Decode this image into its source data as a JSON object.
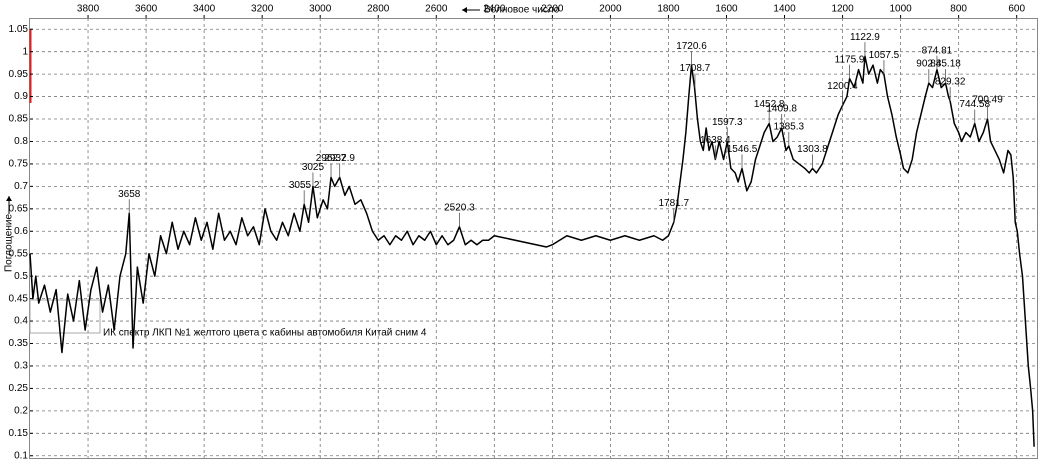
{
  "chart_data": {
    "type": "line",
    "x_label": "Волновое число",
    "y_label": "Поглощение",
    "annotation": "ИК спектр ЛКП №1 желтого цвета с кабины автомобиля Китай сним 4",
    "color": "#000000",
    "grid": true,
    "x_reversed": true,
    "xlim": [
      4000,
      530
    ],
    "ylim": [
      0.095,
      1.075
    ],
    "xticks": [
      3800,
      3600,
      3400,
      3200,
      3000,
      2800,
      2600,
      2400,
      2200,
      2000,
      1800,
      1600,
      1400,
      1200,
      1000,
      800,
      600
    ],
    "yticks": [
      1.05,
      1,
      0.95,
      0.9,
      0.85,
      0.8,
      0.75,
      0.7,
      0.65,
      0.6,
      0.55,
      0.5,
      0.45,
      0.4,
      0.35,
      0.3,
      0.25,
      0.2,
      0.15,
      0.1
    ],
    "x": [
      4000,
      3990,
      3980,
      3970,
      3950,
      3930,
      3910,
      3890,
      3870,
      3850,
      3830,
      3810,
      3790,
      3770,
      3750,
      3730,
      3710,
      3690,
      3670,
      3658,
      3645,
      3630,
      3610,
      3590,
      3570,
      3550,
      3530,
      3510,
      3490,
      3470,
      3450,
      3430,
      3410,
      3390,
      3370,
      3350,
      3330,
      3310,
      3290,
      3270,
      3250,
      3230,
      3210,
      3190,
      3170,
      3150,
      3130,
      3110,
      3090,
      3070,
      3055.2,
      3040,
      3025,
      3010,
      2990,
      2975,
      2962.7,
      2950,
      2932.9,
      2915,
      2900,
      2880,
      2860,
      2840,
      2820,
      2800,
      2780,
      2760,
      2740,
      2720,
      2700,
      2680,
      2660,
      2640,
      2620,
      2600,
      2580,
      2560,
      2540,
      2520.3,
      2500,
      2480,
      2460,
      2440,
      2420,
      2400,
      2220,
      2200,
      2150,
      2100,
      2050,
      2000,
      1950,
      1900,
      1850,
      1820,
      1800,
      1781.7,
      1770,
      1750,
      1740,
      1730,
      1720.6,
      1710,
      1700,
      1690,
      1680,
      1670,
      1660,
      1650,
      1638.4,
      1625,
      1610,
      1597.3,
      1585,
      1570,
      1560,
      1546.5,
      1530,
      1515,
      1500,
      1485,
      1470,
      1452.8,
      1440,
      1425,
      1409.8,
      1395,
      1385.3,
      1370,
      1350,
      1330,
      1315,
      1303.8,
      1290,
      1270,
      1250,
      1230,
      1215,
      1200.4,
      1185,
      1175.9,
      1160,
      1145,
      1130,
      1122.9,
      1110,
      1095,
      1080,
      1070,
      1057.5,
      1045,
      1030,
      1015,
      1000,
      990,
      975,
      960,
      945,
      930,
      915,
      902.8,
      890,
      874.81,
      860,
      845.18,
      835,
      829.32,
      815,
      800,
      790,
      775,
      760,
      744.58,
      730,
      715,
      700.49,
      690,
      675,
      660,
      645,
      630,
      620,
      612,
      605,
      598,
      590,
      580,
      570,
      560,
      552,
      545,
      540
    ],
    "values": [
      0.55,
      0.45,
      0.5,
      0.44,
      0.48,
      0.42,
      0.47,
      0.33,
      0.46,
      0.4,
      0.49,
      0.38,
      0.47,
      0.52,
      0.42,
      0.48,
      0.38,
      0.5,
      0.55,
      0.64,
      0.34,
      0.52,
      0.44,
      0.55,
      0.5,
      0.59,
      0.55,
      0.62,
      0.56,
      0.6,
      0.57,
      0.63,
      0.58,
      0.62,
      0.56,
      0.64,
      0.58,
      0.6,
      0.57,
      0.63,
      0.59,
      0.61,
      0.57,
      0.65,
      0.6,
      0.58,
      0.62,
      0.59,
      0.64,
      0.6,
      0.66,
      0.62,
      0.7,
      0.63,
      0.67,
      0.65,
      0.72,
      0.7,
      0.72,
      0.68,
      0.7,
      0.66,
      0.67,
      0.64,
      0.6,
      0.58,
      0.59,
      0.57,
      0.59,
      0.58,
      0.6,
      0.57,
      0.59,
      0.58,
      0.6,
      0.57,
      0.59,
      0.57,
      0.58,
      0.61,
      0.57,
      0.58,
      0.57,
      0.58,
      0.58,
      0.59,
      0.565,
      0.57,
      0.59,
      0.58,
      0.59,
      0.58,
      0.59,
      0.58,
      0.59,
      0.58,
      0.59,
      0.62,
      0.66,
      0.76,
      0.82,
      0.9,
      0.97,
      0.92,
      0.85,
      0.8,
      0.78,
      0.83,
      0.78,
      0.8,
      0.76,
      0.8,
      0.76,
      0.8,
      0.74,
      0.73,
      0.71,
      0.74,
      0.69,
      0.71,
      0.76,
      0.79,
      0.82,
      0.84,
      0.8,
      0.81,
      0.83,
      0.78,
      0.79,
      0.76,
      0.75,
      0.74,
      0.73,
      0.74,
      0.73,
      0.75,
      0.79,
      0.83,
      0.86,
      0.88,
      0.9,
      0.94,
      0.92,
      0.96,
      0.93,
      0.99,
      0.95,
      0.97,
      0.93,
      0.96,
      0.95,
      0.9,
      0.86,
      0.81,
      0.77,
      0.74,
      0.73,
      0.76,
      0.82,
      0.86,
      0.9,
      0.93,
      0.92,
      0.96,
      0.92,
      0.93,
      0.9,
      0.89,
      0.84,
      0.82,
      0.8,
      0.82,
      0.81,
      0.84,
      0.8,
      0.82,
      0.85,
      0.8,
      0.78,
      0.76,
      0.73,
      0.78,
      0.77,
      0.72,
      0.62,
      0.6,
      0.55,
      0.5,
      0.4,
      0.3,
      0.25,
      0.2,
      0.12
    ],
    "peaks": [
      {
        "x": 3658,
        "y": 0.64
      },
      {
        "x": 3055.2,
        "y": 0.66
      },
      {
        "x": 3025,
        "y": 0.7
      },
      {
        "x": 2962.7,
        "y": 0.72
      },
      {
        "x": 2932.9,
        "y": 0.72
      },
      {
        "x": 2520.3,
        "y": 0.61
      },
      {
        "x": 1781.7,
        "y": 0.62
      },
      {
        "x": 1720.6,
        "y": 0.97
      },
      {
        "x": 1708.7,
        "y": 0.92
      },
      {
        "x": 1638.4,
        "y": 0.76
      },
      {
        "x": 1597.3,
        "y": 0.8
      },
      {
        "x": 1546.5,
        "y": 0.74
      },
      {
        "x": 1452.8,
        "y": 0.84
      },
      {
        "x": 1409.8,
        "y": 0.83
      },
      {
        "x": 1385.3,
        "y": 0.79
      },
      {
        "x": 1303.8,
        "y": 0.74
      },
      {
        "x": 1200.4,
        "y": 0.88
      },
      {
        "x": 1175.9,
        "y": 0.94
      },
      {
        "x": 1122.9,
        "y": 0.99
      },
      {
        "x": 1057.5,
        "y": 0.95
      },
      {
        "x": 902.8,
        "y": 0.93
      },
      {
        "x": 874.81,
        "y": 0.96
      },
      {
        "x": 845.18,
        "y": 0.93
      },
      {
        "x": 829.32,
        "y": 0.89
      },
      {
        "x": 744.58,
        "y": 0.84
      },
      {
        "x": 700.49,
        "y": 0.85
      }
    ]
  }
}
